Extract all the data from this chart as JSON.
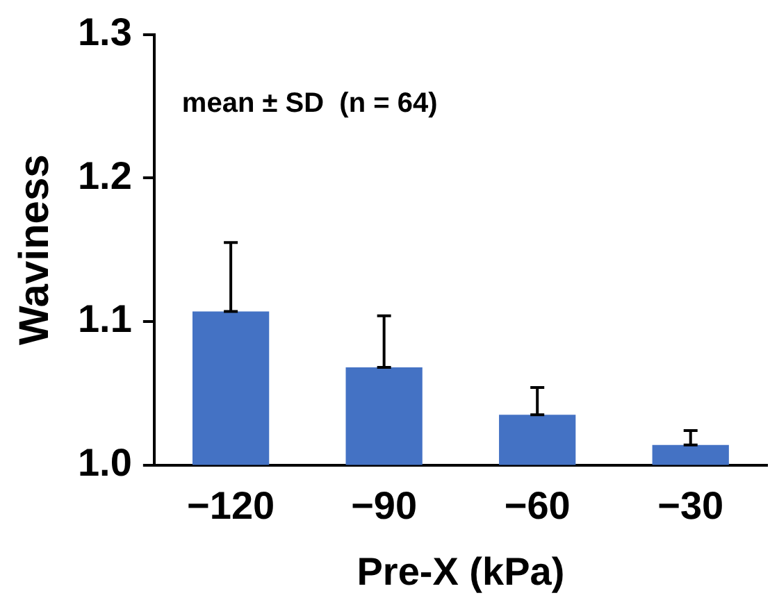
{
  "chart_data": {
    "type": "bar",
    "xlabel": "Pre-X (kPa)",
    "ylabel": "Waviness",
    "categories": [
      "−120",
      "−90",
      "−60",
      "−30"
    ],
    "values": [
      1.107,
      1.068,
      1.035,
      1.014
    ],
    "errors": [
      [
        1.107,
        1.155
      ],
      [
        1.068,
        1.104
      ],
      [
        1.035,
        1.054
      ],
      [
        1.014,
        1.024
      ]
    ],
    "color": "#4472c4",
    "ylim": [
      1.0,
      1.3
    ],
    "yticks": [
      {
        "value": 1.0,
        "label": "1.0"
      },
      {
        "value": 1.1,
        "label": "1.1"
      },
      {
        "value": 1.2,
        "label": "1.2"
      },
      {
        "value": 1.3,
        "label": "1.3"
      }
    ],
    "annotations": [
      "mean ± SD  (n = 64)"
    ],
    "grid": false,
    "legend": false
  }
}
